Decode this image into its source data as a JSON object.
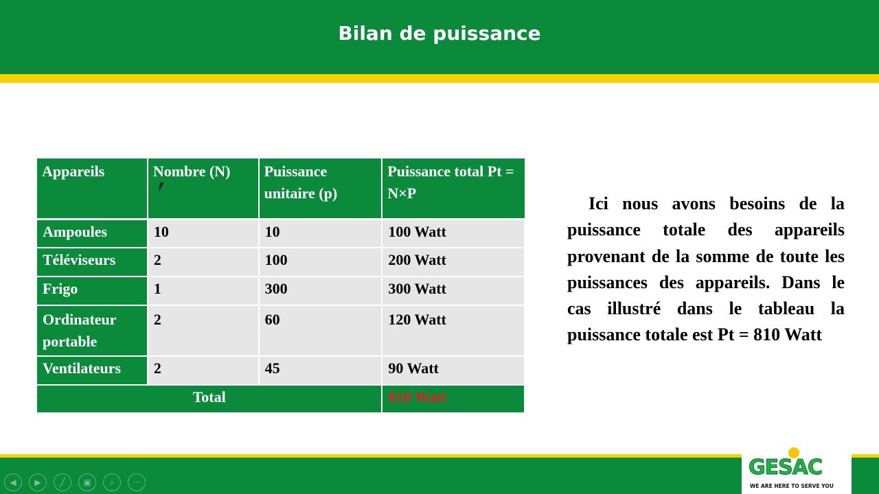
{
  "slide": {
    "title": "Bilan de puissance"
  },
  "table": {
    "headers": [
      "Appareils",
      "Nombre (N)",
      "Puissance unitaire (p)",
      "Puissance total Pt = N×P"
    ],
    "rows": [
      [
        "Ampoules",
        "10",
        "10",
        "100 Watt"
      ],
      [
        "Téléviseurs",
        "2",
        "100",
        "200 Watt"
      ],
      [
        "Frigo",
        "1",
        "300",
        "300 Watt"
      ],
      [
        "Ordinateur portable",
        "2",
        "60",
        "120 Watt"
      ],
      [
        "Ventilateurs",
        "2",
        "45",
        "90 Watt"
      ]
    ],
    "total_label": "Total",
    "total_value": "810 Watt"
  },
  "paragraph": "Ici nous avons besoins de la puissance totale des appareils provenant de la somme de toute les puissances des appareils. Dans le cas illustré dans le tableau la puissance totale est Pt = 810 Watt",
  "logo": {
    "name": "GESAC",
    "tagline": "WE ARE HERE TO SERVE YOU"
  },
  "controls": [
    "previous-icon",
    "next-icon",
    "pen-icon",
    "slides-icon",
    "zoom-icon",
    "more-icon"
  ],
  "colors": {
    "green": "#0b8a3c",
    "yellow": "#f6d200",
    "total_red": "#e0201b"
  }
}
